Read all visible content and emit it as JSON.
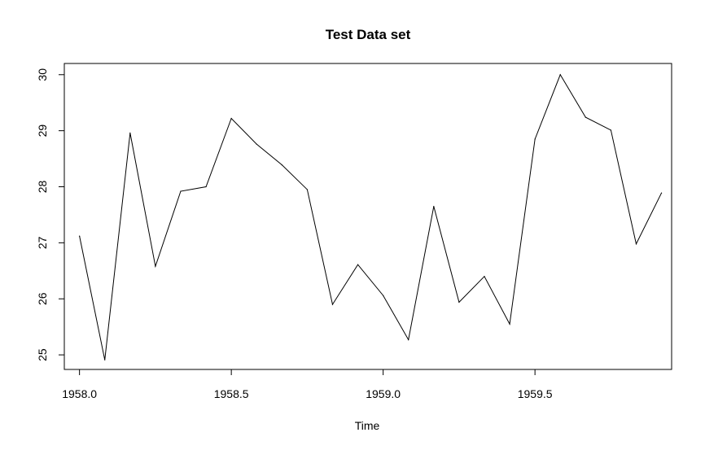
{
  "chart_data": {
    "type": "line",
    "title": "Test Data set",
    "xlabel": "Time",
    "ylabel": "",
    "xlim": [
      1957.95,
      1959.95
    ],
    "ylim": [
      24.74,
      30.2
    ],
    "x_ticks": [
      1958.0,
      1958.5,
      1959.0,
      1959.5
    ],
    "x_tick_labels": [
      "1958.0",
      "1958.5",
      "1959.0",
      "1959.5"
    ],
    "y_ticks": [
      25,
      26,
      27,
      28,
      29,
      30
    ],
    "y_tick_labels": [
      "25",
      "26",
      "27",
      "28",
      "29",
      "30"
    ],
    "grid": false,
    "line_color": "#000000",
    "series": [
      {
        "x": [
          1958.0,
          1958.0833,
          1958.1667,
          1958.25,
          1958.3333,
          1958.4167,
          1958.5,
          1958.5833,
          1958.6667,
          1958.75,
          1958.8333,
          1958.9167,
          1959.0,
          1959.0833,
          1959.1667,
          1959.25,
          1959.3333,
          1959.4167,
          1959.5,
          1959.5833,
          1959.6667,
          1959.75,
          1959.8333,
          1959.9167
        ],
        "values": [
          27.12,
          24.91,
          28.96,
          26.58,
          27.92,
          28.0,
          29.22,
          28.76,
          28.39,
          27.95,
          25.9,
          26.61,
          26.06,
          25.27,
          27.65,
          25.94,
          26.4,
          25.55,
          28.85,
          30.0,
          29.24,
          29.01,
          26.98,
          27.89
        ]
      }
    ]
  }
}
